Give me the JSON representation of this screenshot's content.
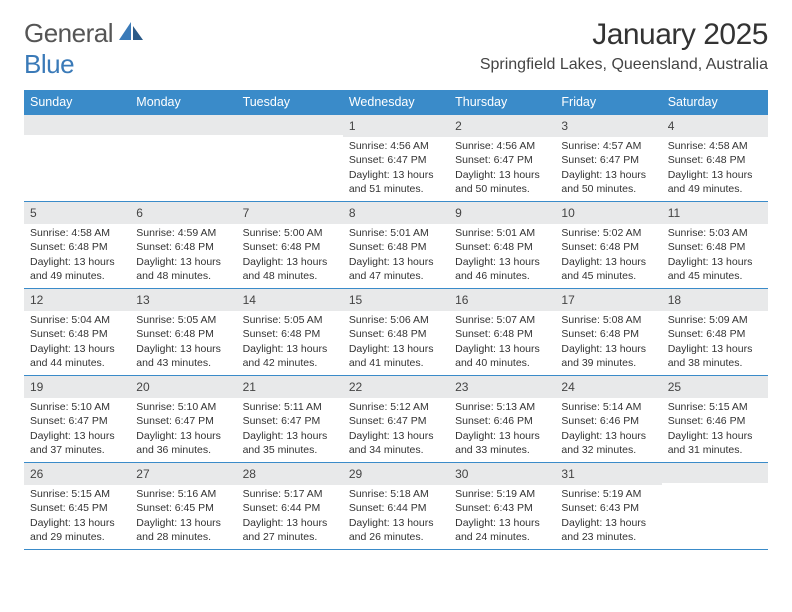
{
  "logo": {
    "text1": "General",
    "text2": "Blue"
  },
  "title": "January 2025",
  "location": "Springfield Lakes, Queensland, Australia",
  "colors": {
    "header_bg": "#3a8bc9",
    "header_text": "#ffffff",
    "daynum_bg": "#e8e9ea",
    "row_border": "#3a8bc9",
    "body_text": "#333333",
    "logo_blue": "#3a7ab8"
  },
  "day_headers": [
    "Sunday",
    "Monday",
    "Tuesday",
    "Wednesday",
    "Thursday",
    "Friday",
    "Saturday"
  ],
  "weeks": [
    [
      {
        "num": "",
        "lines": []
      },
      {
        "num": "",
        "lines": []
      },
      {
        "num": "",
        "lines": []
      },
      {
        "num": "1",
        "lines": [
          "Sunrise: 4:56 AM",
          "Sunset: 6:47 PM",
          "Daylight: 13 hours",
          "and 51 minutes."
        ]
      },
      {
        "num": "2",
        "lines": [
          "Sunrise: 4:56 AM",
          "Sunset: 6:47 PM",
          "Daylight: 13 hours",
          "and 50 minutes."
        ]
      },
      {
        "num": "3",
        "lines": [
          "Sunrise: 4:57 AM",
          "Sunset: 6:47 PM",
          "Daylight: 13 hours",
          "and 50 minutes."
        ]
      },
      {
        "num": "4",
        "lines": [
          "Sunrise: 4:58 AM",
          "Sunset: 6:48 PM",
          "Daylight: 13 hours",
          "and 49 minutes."
        ]
      }
    ],
    [
      {
        "num": "5",
        "lines": [
          "Sunrise: 4:58 AM",
          "Sunset: 6:48 PM",
          "Daylight: 13 hours",
          "and 49 minutes."
        ]
      },
      {
        "num": "6",
        "lines": [
          "Sunrise: 4:59 AM",
          "Sunset: 6:48 PM",
          "Daylight: 13 hours",
          "and 48 minutes."
        ]
      },
      {
        "num": "7",
        "lines": [
          "Sunrise: 5:00 AM",
          "Sunset: 6:48 PM",
          "Daylight: 13 hours",
          "and 48 minutes."
        ]
      },
      {
        "num": "8",
        "lines": [
          "Sunrise: 5:01 AM",
          "Sunset: 6:48 PM",
          "Daylight: 13 hours",
          "and 47 minutes."
        ]
      },
      {
        "num": "9",
        "lines": [
          "Sunrise: 5:01 AM",
          "Sunset: 6:48 PM",
          "Daylight: 13 hours",
          "and 46 minutes."
        ]
      },
      {
        "num": "10",
        "lines": [
          "Sunrise: 5:02 AM",
          "Sunset: 6:48 PM",
          "Daylight: 13 hours",
          "and 45 minutes."
        ]
      },
      {
        "num": "11",
        "lines": [
          "Sunrise: 5:03 AM",
          "Sunset: 6:48 PM",
          "Daylight: 13 hours",
          "and 45 minutes."
        ]
      }
    ],
    [
      {
        "num": "12",
        "lines": [
          "Sunrise: 5:04 AM",
          "Sunset: 6:48 PM",
          "Daylight: 13 hours",
          "and 44 minutes."
        ]
      },
      {
        "num": "13",
        "lines": [
          "Sunrise: 5:05 AM",
          "Sunset: 6:48 PM",
          "Daylight: 13 hours",
          "and 43 minutes."
        ]
      },
      {
        "num": "14",
        "lines": [
          "Sunrise: 5:05 AM",
          "Sunset: 6:48 PM",
          "Daylight: 13 hours",
          "and 42 minutes."
        ]
      },
      {
        "num": "15",
        "lines": [
          "Sunrise: 5:06 AM",
          "Sunset: 6:48 PM",
          "Daylight: 13 hours",
          "and 41 minutes."
        ]
      },
      {
        "num": "16",
        "lines": [
          "Sunrise: 5:07 AM",
          "Sunset: 6:48 PM",
          "Daylight: 13 hours",
          "and 40 minutes."
        ]
      },
      {
        "num": "17",
        "lines": [
          "Sunrise: 5:08 AM",
          "Sunset: 6:48 PM",
          "Daylight: 13 hours",
          "and 39 minutes."
        ]
      },
      {
        "num": "18",
        "lines": [
          "Sunrise: 5:09 AM",
          "Sunset: 6:48 PM",
          "Daylight: 13 hours",
          "and 38 minutes."
        ]
      }
    ],
    [
      {
        "num": "19",
        "lines": [
          "Sunrise: 5:10 AM",
          "Sunset: 6:47 PM",
          "Daylight: 13 hours",
          "and 37 minutes."
        ]
      },
      {
        "num": "20",
        "lines": [
          "Sunrise: 5:10 AM",
          "Sunset: 6:47 PM",
          "Daylight: 13 hours",
          "and 36 minutes."
        ]
      },
      {
        "num": "21",
        "lines": [
          "Sunrise: 5:11 AM",
          "Sunset: 6:47 PM",
          "Daylight: 13 hours",
          "and 35 minutes."
        ]
      },
      {
        "num": "22",
        "lines": [
          "Sunrise: 5:12 AM",
          "Sunset: 6:47 PM",
          "Daylight: 13 hours",
          "and 34 minutes."
        ]
      },
      {
        "num": "23",
        "lines": [
          "Sunrise: 5:13 AM",
          "Sunset: 6:46 PM",
          "Daylight: 13 hours",
          "and 33 minutes."
        ]
      },
      {
        "num": "24",
        "lines": [
          "Sunrise: 5:14 AM",
          "Sunset: 6:46 PM",
          "Daylight: 13 hours",
          "and 32 minutes."
        ]
      },
      {
        "num": "25",
        "lines": [
          "Sunrise: 5:15 AM",
          "Sunset: 6:46 PM",
          "Daylight: 13 hours",
          "and 31 minutes."
        ]
      }
    ],
    [
      {
        "num": "26",
        "lines": [
          "Sunrise: 5:15 AM",
          "Sunset: 6:45 PM",
          "Daylight: 13 hours",
          "and 29 minutes."
        ]
      },
      {
        "num": "27",
        "lines": [
          "Sunrise: 5:16 AM",
          "Sunset: 6:45 PM",
          "Daylight: 13 hours",
          "and 28 minutes."
        ]
      },
      {
        "num": "28",
        "lines": [
          "Sunrise: 5:17 AM",
          "Sunset: 6:44 PM",
          "Daylight: 13 hours",
          "and 27 minutes."
        ]
      },
      {
        "num": "29",
        "lines": [
          "Sunrise: 5:18 AM",
          "Sunset: 6:44 PM",
          "Daylight: 13 hours",
          "and 26 minutes."
        ]
      },
      {
        "num": "30",
        "lines": [
          "Sunrise: 5:19 AM",
          "Sunset: 6:43 PM",
          "Daylight: 13 hours",
          "and 24 minutes."
        ]
      },
      {
        "num": "31",
        "lines": [
          "Sunrise: 5:19 AM",
          "Sunset: 6:43 PM",
          "Daylight: 13 hours",
          "and 23 minutes."
        ]
      },
      {
        "num": "",
        "lines": []
      }
    ]
  ]
}
